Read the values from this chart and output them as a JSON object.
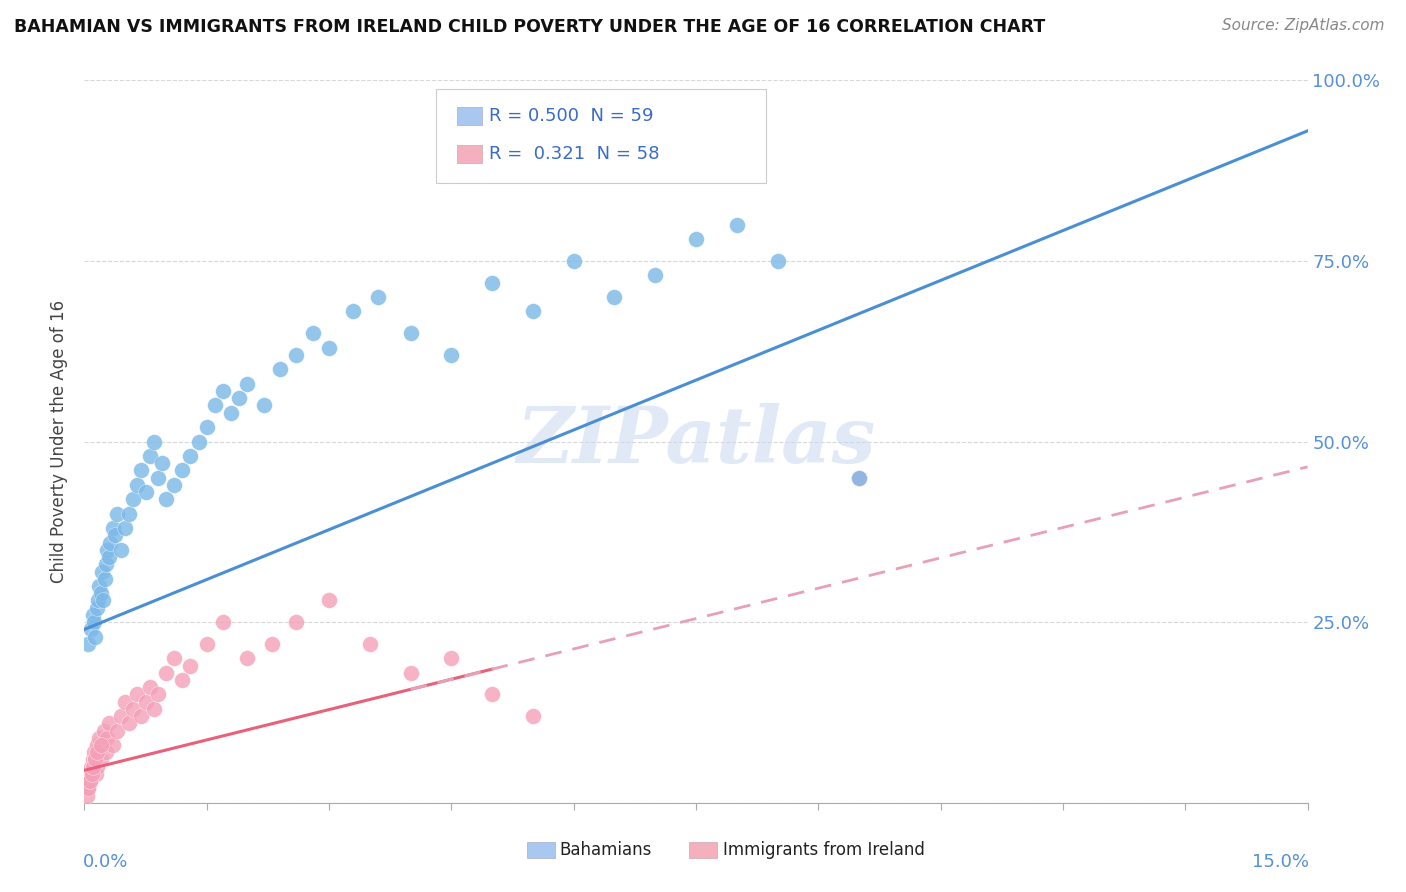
{
  "title": "BAHAMIAN VS IMMIGRANTS FROM IRELAND CHILD POVERTY UNDER THE AGE OF 16 CORRELATION CHART",
  "source": "Source: ZipAtlas.com",
  "ylabel": "Child Poverty Under the Age of 16",
  "xmin": 0.0,
  "xmax": 15.0,
  "ymin": 0.0,
  "ymax": 100.0,
  "blue_color": "#7ab8e8",
  "pink_color": "#f4a0b8",
  "blue_line_color": "#4a8fd4",
  "pink_line_color": "#e8607a",
  "pink_dash_color": "#e8a0b4",
  "watermark": "ZIPatlas",
  "background_color": "#ffffff",
  "grid_color": "#d8d8d8",
  "blue_intercept": 24.0,
  "blue_slope": 4.6,
  "pink_intercept": 4.5,
  "pink_slope": 2.8,
  "bahamian_x": [
    0.05,
    0.08,
    0.1,
    0.12,
    0.13,
    0.15,
    0.17,
    0.18,
    0.2,
    0.22,
    0.23,
    0.25,
    0.27,
    0.28,
    0.3,
    0.32,
    0.35,
    0.38,
    0.4,
    0.45,
    0.5,
    0.55,
    0.6,
    0.65,
    0.7,
    0.75,
    0.8,
    0.85,
    0.9,
    0.95,
    1.0,
    1.1,
    1.2,
    1.3,
    1.4,
    1.5,
    1.6,
    1.7,
    1.8,
    1.9,
    2.0,
    2.2,
    2.4,
    2.6,
    2.8,
    3.0,
    3.3,
    3.6,
    4.0,
    4.5,
    5.0,
    5.5,
    6.0,
    6.5,
    7.0,
    7.5,
    8.0,
    8.5,
    9.5
  ],
  "bahamian_y": [
    22,
    24,
    26,
    25,
    23,
    27,
    28,
    30,
    29,
    32,
    28,
    31,
    33,
    35,
    34,
    36,
    38,
    37,
    40,
    35,
    38,
    40,
    42,
    44,
    46,
    43,
    48,
    50,
    45,
    47,
    42,
    44,
    46,
    48,
    50,
    52,
    55,
    57,
    54,
    56,
    58,
    55,
    60,
    62,
    65,
    63,
    68,
    70,
    65,
    62,
    72,
    68,
    75,
    70,
    73,
    78,
    80,
    75,
    45
  ],
  "ireland_x": [
    0.02,
    0.04,
    0.05,
    0.06,
    0.07,
    0.08,
    0.09,
    0.1,
    0.11,
    0.12,
    0.13,
    0.14,
    0.15,
    0.16,
    0.17,
    0.18,
    0.2,
    0.22,
    0.24,
    0.26,
    0.28,
    0.3,
    0.35,
    0.4,
    0.45,
    0.5,
    0.55,
    0.6,
    0.65,
    0.7,
    0.75,
    0.8,
    0.85,
    0.9,
    1.0,
    1.1,
    1.2,
    1.3,
    1.5,
    1.7,
    2.0,
    2.3,
    2.6,
    3.0,
    3.5,
    4.0,
    4.5,
    5.0,
    5.5,
    9.5,
    0.03,
    0.05,
    0.07,
    0.09,
    0.11,
    0.13,
    0.15,
    0.2
  ],
  "ireland_y": [
    2,
    3,
    2,
    4,
    3,
    5,
    4,
    6,
    5,
    7,
    6,
    4,
    8,
    5,
    7,
    9,
    6,
    8,
    10,
    7,
    9,
    11,
    8,
    10,
    12,
    14,
    11,
    13,
    15,
    12,
    14,
    16,
    13,
    15,
    18,
    20,
    17,
    19,
    22,
    25,
    20,
    22,
    25,
    28,
    22,
    18,
    20,
    15,
    12,
    45,
    1,
    2,
    3,
    4,
    5,
    6,
    7,
    8
  ]
}
